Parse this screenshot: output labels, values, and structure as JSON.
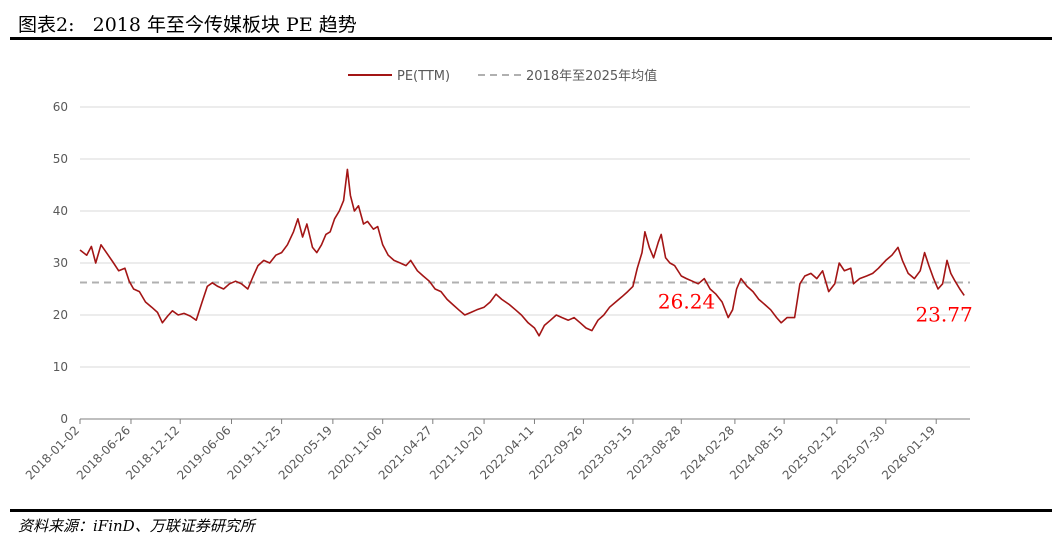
{
  "figure": {
    "title": "图表2:   2018 年至今传媒板块 PE 趋势",
    "source": "资料来源：iFinD、万联证券研究所"
  },
  "colors": {
    "series": "#a31515",
    "mean": "#b0b0b0",
    "annotation": "#ff0000",
    "grid": "#d9d9d9",
    "axis": "#7f7f7f"
  },
  "chart_data": {
    "type": "line",
    "legend_position": "top-center",
    "grid": true,
    "ylim": [
      0,
      60
    ],
    "yticks": [
      0,
      10,
      20,
      30,
      40,
      50,
      60
    ],
    "xlim": [
      "2018-01-02",
      "2026-05-15"
    ],
    "xticks": [
      "2018-01-02",
      "2018-06-26",
      "2018-12-12",
      "2019-06-06",
      "2019-11-25",
      "2020-05-19",
      "2020-11-06",
      "2021-04-27",
      "2021-10-20",
      "2022-04-11",
      "2022-09-26",
      "2023-03-15",
      "2023-08-28",
      "2024-02-28",
      "2024-08-15",
      "2025-02-12",
      "2025-07-30",
      "2026-01-19"
    ],
    "series": [
      {
        "name": "PE(TTM)",
        "style": "solid",
        "points": [
          [
            "2018-01-02",
            32.5
          ],
          [
            "2018-01-25",
            31.5
          ],
          [
            "2018-02-10",
            33.2
          ],
          [
            "2018-02-25",
            30.0
          ],
          [
            "2018-03-15",
            33.5
          ],
          [
            "2018-04-05",
            31.8
          ],
          [
            "2018-04-25",
            30.2
          ],
          [
            "2018-05-15",
            28.5
          ],
          [
            "2018-06-05",
            29.0
          ],
          [
            "2018-06-20",
            26.5
          ],
          [
            "2018-07-05",
            25.0
          ],
          [
            "2018-07-25",
            24.5
          ],
          [
            "2018-08-15",
            22.5
          ],
          [
            "2018-09-05",
            21.5
          ],
          [
            "2018-09-25",
            20.5
          ],
          [
            "2018-10-12",
            18.5
          ],
          [
            "2018-10-30",
            19.8
          ],
          [
            "2018-11-15",
            20.8
          ],
          [
            "2018-12-05",
            20.0
          ],
          [
            "2018-12-25",
            20.3
          ],
          [
            "2019-01-15",
            19.8
          ],
          [
            "2019-02-05",
            19.0
          ],
          [
            "2019-02-25",
            22.5
          ],
          [
            "2019-03-15",
            25.5
          ],
          [
            "2019-04-01",
            26.2
          ],
          [
            "2019-04-20",
            25.5
          ],
          [
            "2019-05-10",
            25.0
          ],
          [
            "2019-05-30",
            26.0
          ],
          [
            "2019-06-20",
            26.5
          ],
          [
            "2019-07-10",
            26.0
          ],
          [
            "2019-08-01",
            25.0
          ],
          [
            "2019-08-20",
            27.5
          ],
          [
            "2019-09-05",
            29.5
          ],
          [
            "2019-09-25",
            30.5
          ],
          [
            "2019-10-15",
            30.0
          ],
          [
            "2019-11-05",
            31.5
          ],
          [
            "2019-11-25",
            32.0
          ],
          [
            "2019-12-15",
            33.5
          ],
          [
            "2020-01-05",
            36.0
          ],
          [
            "2020-01-20",
            38.5
          ],
          [
            "2020-02-05",
            35.0
          ],
          [
            "2020-02-20",
            37.5
          ],
          [
            "2020-03-10",
            33.0
          ],
          [
            "2020-03-25",
            32.0
          ],
          [
            "2020-04-10",
            33.5
          ],
          [
            "2020-04-25",
            35.5
          ],
          [
            "2020-05-10",
            36.0
          ],
          [
            "2020-05-25",
            38.5
          ],
          [
            "2020-06-10",
            40.0
          ],
          [
            "2020-06-25",
            42.0
          ],
          [
            "2020-07-08",
            48.0
          ],
          [
            "2020-07-18",
            43.0
          ],
          [
            "2020-08-01",
            40.0
          ],
          [
            "2020-08-15",
            41.0
          ],
          [
            "2020-09-01",
            37.5
          ],
          [
            "2020-09-15",
            38.0
          ],
          [
            "2020-10-05",
            36.5
          ],
          [
            "2020-10-20",
            37.0
          ],
          [
            "2020-11-06",
            33.5
          ],
          [
            "2020-11-25",
            31.5
          ],
          [
            "2020-12-15",
            30.5
          ],
          [
            "2021-01-05",
            30.0
          ],
          [
            "2021-01-25",
            29.5
          ],
          [
            "2021-02-10",
            30.5
          ],
          [
            "2021-03-05",
            28.5
          ],
          [
            "2021-03-25",
            27.5
          ],
          [
            "2021-04-15",
            26.5
          ],
          [
            "2021-05-05",
            25.0
          ],
          [
            "2021-05-25",
            24.5
          ],
          [
            "2021-06-15",
            23.0
          ],
          [
            "2021-07-05",
            22.0
          ],
          [
            "2021-07-25",
            21.0
          ],
          [
            "2021-08-15",
            20.0
          ],
          [
            "2021-09-05",
            20.5
          ],
          [
            "2021-09-25",
            21.0
          ],
          [
            "2021-10-20",
            21.5
          ],
          [
            "2021-11-10",
            22.5
          ],
          [
            "2021-11-30",
            24.0
          ],
          [
            "2021-12-20",
            23.0
          ],
          [
            "2022-01-15",
            22.0
          ],
          [
            "2022-02-05",
            21.0
          ],
          [
            "2022-02-25",
            20.0
          ],
          [
            "2022-03-20",
            18.5
          ],
          [
            "2022-04-11",
            17.5
          ],
          [
            "2022-04-27",
            16.0
          ],
          [
            "2022-05-15",
            18.0
          ],
          [
            "2022-06-05",
            19.0
          ],
          [
            "2022-06-25",
            20.0
          ],
          [
            "2022-07-15",
            19.5
          ],
          [
            "2022-08-05",
            19.0
          ],
          [
            "2022-08-25",
            19.5
          ],
          [
            "2022-09-15",
            18.5
          ],
          [
            "2022-10-05",
            17.5
          ],
          [
            "2022-10-25",
            17.0
          ],
          [
            "2022-11-15",
            19.0
          ],
          [
            "2022-12-05",
            20.0
          ],
          [
            "2022-12-25",
            21.5
          ],
          [
            "2023-01-15",
            22.5
          ],
          [
            "2023-02-05",
            23.5
          ],
          [
            "2023-02-25",
            24.5
          ],
          [
            "2023-03-15",
            25.5
          ],
          [
            "2023-03-30",
            29.0
          ],
          [
            "2023-04-15",
            32.0
          ],
          [
            "2023-04-25",
            36.0
          ],
          [
            "2023-05-10",
            33.0
          ],
          [
            "2023-05-25",
            31.0
          ],
          [
            "2023-06-10",
            34.0
          ],
          [
            "2023-06-20",
            35.5
          ],
          [
            "2023-07-05",
            31.0
          ],
          [
            "2023-07-20",
            30.0
          ],
          [
            "2023-08-05",
            29.5
          ],
          [
            "2023-08-28",
            27.5
          ],
          [
            "2023-09-15",
            27.0
          ],
          [
            "2023-10-05",
            26.5
          ],
          [
            "2023-10-25",
            26.0
          ],
          [
            "2023-11-15",
            27.0
          ],
          [
            "2023-12-05",
            25.0
          ],
          [
            "2023-12-25",
            24.0
          ],
          [
            "2024-01-15",
            22.5
          ],
          [
            "2024-02-05",
            19.5
          ],
          [
            "2024-02-20",
            21.0
          ],
          [
            "2024-03-05",
            25.0
          ],
          [
            "2024-03-20",
            27.0
          ],
          [
            "2024-04-10",
            25.5
          ],
          [
            "2024-04-30",
            24.5
          ],
          [
            "2024-05-20",
            23.0
          ],
          [
            "2024-06-10",
            22.0
          ],
          [
            "2024-06-30",
            21.0
          ],
          [
            "2024-07-20",
            19.5
          ],
          [
            "2024-08-05",
            18.5
          ],
          [
            "2024-08-25",
            19.5
          ],
          [
            "2024-09-20",
            19.5
          ],
          [
            "2024-10-08",
            26.0
          ],
          [
            "2024-10-25",
            27.5
          ],
          [
            "2024-11-15",
            28.0
          ],
          [
            "2024-12-05",
            27.0
          ],
          [
            "2024-12-25",
            28.5
          ],
          [
            "2025-01-15",
            24.5
          ],
          [
            "2025-02-05",
            26.0
          ],
          [
            "2025-02-20",
            30.0
          ],
          [
            "2025-03-10",
            28.5
          ],
          [
            "2025-04-01",
            29.0
          ],
          [
            "2025-04-10",
            26.0
          ],
          [
            "2025-05-01",
            27.0
          ],
          [
            "2025-05-25",
            27.5
          ],
          [
            "2025-06-15",
            28.0
          ],
          [
            "2025-07-05",
            29.0
          ],
          [
            "2025-07-30",
            30.5
          ],
          [
            "2025-08-20",
            31.5
          ],
          [
            "2025-09-10",
            33.0
          ],
          [
            "2025-09-25",
            30.5
          ],
          [
            "2025-10-15",
            28.0
          ],
          [
            "2025-11-05",
            27.0
          ],
          [
            "2025-11-25",
            28.5
          ],
          [
            "2025-12-10",
            32.0
          ],
          [
            "2025-12-25",
            29.5
          ],
          [
            "2026-01-10",
            27.0
          ],
          [
            "2026-01-25",
            25.0
          ],
          [
            "2026-02-10",
            26.0
          ],
          [
            "2026-02-25",
            30.5
          ],
          [
            "2026-03-10",
            28.0
          ],
          [
            "2026-03-25",
            26.5
          ],
          [
            "2026-04-10",
            25.0
          ],
          [
            "2026-04-25",
            23.77
          ]
        ]
      },
      {
        "name": "2018年至2025年均值",
        "style": "dashed",
        "value": 26.24
      }
    ],
    "annotations": [
      {
        "text": "26.24",
        "x": "2023-09-15",
        "y": 26.24
      },
      {
        "text": "23.77",
        "x": "2026-02-15",
        "y": 23.77
      }
    ]
  }
}
